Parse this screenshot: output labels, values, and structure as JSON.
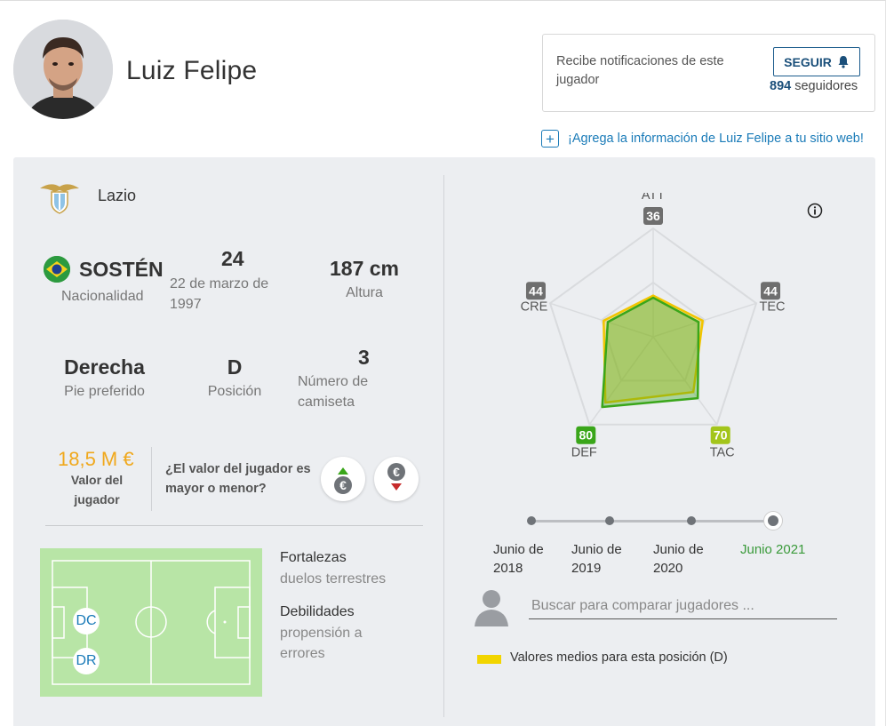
{
  "player": {
    "name": "Luiz Felipe",
    "photo_alt": "avatar"
  },
  "notify": {
    "text": "Recibe notificaciones de este jugador",
    "follow_label": "SEGUIR",
    "followers_count": "894",
    "followers_label": "seguidores"
  },
  "embed": {
    "link_text": "¡Agrega la información de Luiz Felipe a tu sitio web!"
  },
  "club": {
    "name": "Lazio"
  },
  "details": {
    "nationality": {
      "value": "SOSTÉN",
      "label": "Nacionalidad"
    },
    "age": {
      "value": "24",
      "label": "22 de marzo de 1997"
    },
    "height": {
      "value": "187 cm",
      "label": "Altura"
    },
    "foot": {
      "value": "Derecha",
      "label": "Pie preferido"
    },
    "position": {
      "value": "D",
      "label": "Posición"
    },
    "shirt": {
      "value": "3",
      "label": "Número de camiseta"
    }
  },
  "market": {
    "value": "18,5 M €",
    "label": "Valor del jugador",
    "question": "¿El valor del jugador es mayor o menor?",
    "up_icon": "euro-up-icon",
    "down_icon": "euro-down-icon"
  },
  "pitch": {
    "positions": [
      "DC",
      "DR"
    ]
  },
  "strengths": {
    "title": "Fortalezas",
    "text": "duelos terrestres"
  },
  "weaknesses": {
    "title": "Debilidades",
    "text": "propensión a errores"
  },
  "chart_data": {
    "type": "radar",
    "axes": [
      "ATT",
      "TEC",
      "TAC",
      "DEF",
      "CRE"
    ],
    "axis_values": [
      36,
      44,
      70,
      80,
      44
    ],
    "badge_colors": [
      "#6e6e6e",
      "#6e6e6e",
      "#a3c51b",
      "#3aa61a",
      "#6e6e6e"
    ],
    "range": [
      0,
      100
    ],
    "series": [
      {
        "name": "Luiz Felipe",
        "values": [
          36,
          44,
          70,
          80,
          44
        ],
        "color": "#3aa61a"
      },
      {
        "name": "Valores medios para esta posición (D)",
        "values": [
          38,
          48,
          63,
          75,
          48
        ],
        "color": "#f2c500"
      }
    ]
  },
  "timeline": {
    "labels": [
      "Junio de 2018",
      "Junio de 2019",
      "Junio de 2020",
      "Junio 2021"
    ],
    "active_index": 3
  },
  "compare": {
    "placeholder": "Buscar para comparar jugadores ..."
  },
  "legend": {
    "text": "Valores medios para esta posición (D)",
    "color": "#f2d500"
  }
}
